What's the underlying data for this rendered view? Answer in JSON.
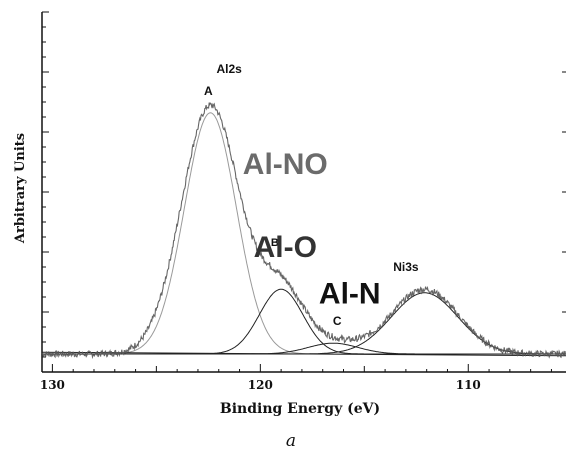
{
  "chart_data": {
    "type": "line",
    "title": "",
    "xlabel": "Binding Energy (eV)",
    "ylabel": "Arbitrary Units",
    "caption": "a",
    "xlim": [
      130.5,
      105.3
    ],
    "ylim": [
      0,
      1.0
    ],
    "x_ticks": [
      "130",
      "120",
      "110"
    ],
    "x_tick_values": [
      130,
      120,
      110
    ],
    "x_axis_reversed": true,
    "grid": false,
    "baseline": 0.05,
    "series": [
      {
        "name": "",
        "role": "measured spectrum",
        "peaks": [
          {
            "center": 122.4,
            "height": 0.69,
            "width": 1.4
          },
          {
            "center": 119.0,
            "height": 0.18,
            "width": 1.1
          },
          {
            "center": 116.5,
            "height": 0.03,
            "width": 1.2
          },
          {
            "center": 112.1,
            "height": 0.18,
            "width": 1.6
          }
        ]
      },
      {
        "name": "",
        "role": "fitted component A",
        "center": 122.4,
        "height": 0.67,
        "width": 1.25
      },
      {
        "name": "",
        "role": "fitted component B",
        "center": 119.0,
        "height": 0.18,
        "width": 1.05
      },
      {
        "name": "",
        "role": "fitted component C",
        "center": 116.5,
        "height": 0.03,
        "width": 1.2
      },
      {
        "name": "",
        "role": "fitted component Ni3s",
        "center": 112.1,
        "height": 0.17,
        "width": 1.6
      }
    ],
    "annotations": [
      {
        "text": "A",
        "x": 122.5,
        "y": 0.77
      },
      {
        "text": "Al2s",
        "x": 121.5,
        "y": 0.83
      },
      {
        "text": "Al-NO",
        "x": 118.8,
        "y": 0.55
      },
      {
        "text": "B",
        "x": 119.3,
        "y": 0.35
      },
      {
        "text": "Al-O",
        "x": 118.8,
        "y": 0.32
      },
      {
        "text": "Al-N",
        "x": 115.7,
        "y": 0.19
      },
      {
        "text": "Ni3s",
        "x": 113.0,
        "y": 0.28
      },
      {
        "text": "C",
        "x": 116.3,
        "y": 0.13
      }
    ]
  }
}
